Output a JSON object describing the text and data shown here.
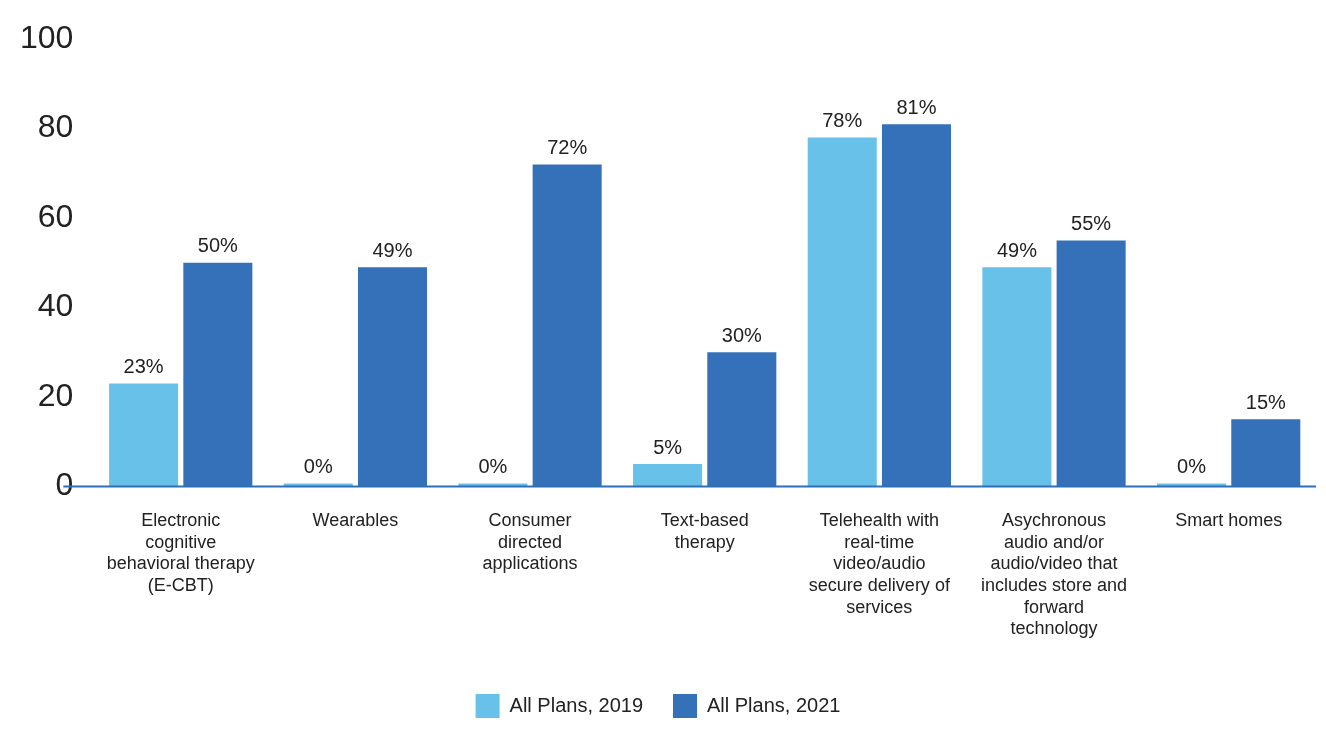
{
  "chart_data": {
    "type": "bar",
    "categories": [
      "Electronic cognitive behavioral therapy (E-CBT)",
      "Wearables",
      "Consumer directed applications",
      "Text-based therapy",
      "Telehealth with real-time video/audio secure delivery of services",
      "Asychronous audio and/or audio/video that includes store and forward technology",
      "Smart homes"
    ],
    "series": [
      {
        "name": "All Plans, 2019",
        "color": "#67c1e8",
        "values": [
          23,
          0,
          0,
          5,
          78,
          49,
          0
        ],
        "value_labels": [
          "23%",
          "0%",
          "0%",
          "5%",
          "78%",
          "49%",
          "0%"
        ]
      },
      {
        "name": "All Plans, 2021",
        "color": "#3471b8",
        "values": [
          50,
          49,
          72,
          30,
          81,
          55,
          15
        ],
        "value_labels": [
          "50%",
          "49%",
          "72%",
          "30%",
          "81%",
          "55%",
          "15%"
        ]
      }
    ],
    "ylim": [
      0,
      100
    ],
    "yticks": [
      0,
      20,
      40,
      60,
      80,
      100
    ],
    "grid": false,
    "legend": "bottom"
  }
}
